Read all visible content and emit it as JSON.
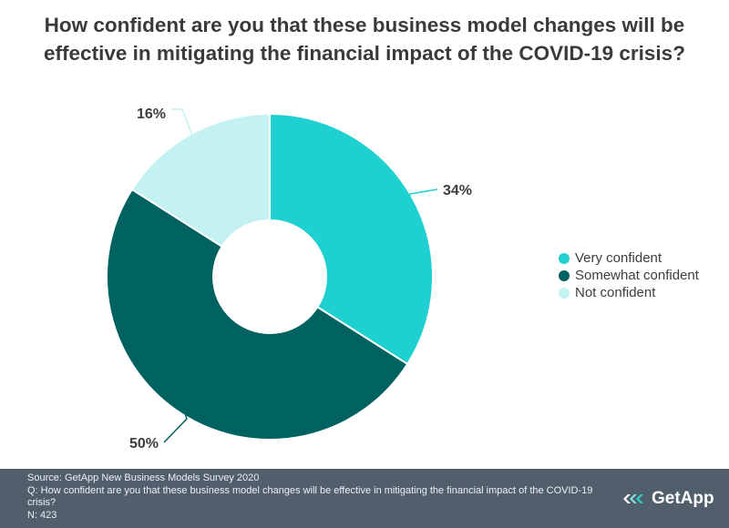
{
  "chart_data": {
    "type": "pie",
    "variant": "donut",
    "title": "How confident are you that these business model changes will be effective in mitigating the financial impact of the COVID-19 crisis?",
    "categories": [
      "Very confident",
      "Somewhat confident",
      "Not confident"
    ],
    "values": [
      34,
      50,
      16
    ],
    "labels": [
      "34%",
      "50%",
      "16%"
    ],
    "colors": [
      "#1fd0d0",
      "#006161",
      "#c4f2f2"
    ],
    "legend_position": "right"
  },
  "footer": {
    "source": "Source: GetApp New Business Models  Survey 2020",
    "question": "Q: How confident are you that these business model changes will be effective in mitigating the financial impact of the COVID-19 crisis?",
    "n": "N: 423",
    "brand": "GetApp",
    "brand_icon": "getapp-logo-icon",
    "background": "#515e6c"
  }
}
